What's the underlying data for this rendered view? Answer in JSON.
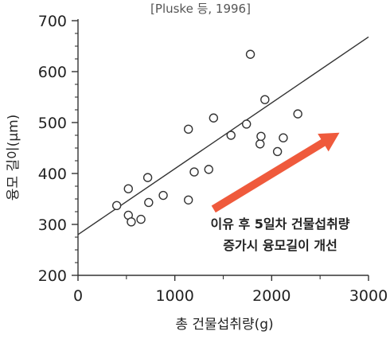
{
  "chart_data": {
    "type": "scatter",
    "source_note": "[Pluske 등, 1996]",
    "xlabel": "총 건물섭취량(g)",
    "ylabel": "융모 길이(μm)",
    "xlim": [
      0,
      3000
    ],
    "ylim": [
      200,
      700
    ],
    "x_ticks": [
      0,
      1000,
      2000,
      3000
    ],
    "y_ticks": [
      200,
      300,
      400,
      500,
      600,
      700
    ],
    "points": [
      {
        "x": 400,
        "y": 337
      },
      {
        "x": 520,
        "y": 370
      },
      {
        "x": 520,
        "y": 318
      },
      {
        "x": 550,
        "y": 305
      },
      {
        "x": 650,
        "y": 310
      },
      {
        "x": 720,
        "y": 392
      },
      {
        "x": 730,
        "y": 343
      },
      {
        "x": 880,
        "y": 357
      },
      {
        "x": 1140,
        "y": 348
      },
      {
        "x": 1140,
        "y": 487
      },
      {
        "x": 1200,
        "y": 403
      },
      {
        "x": 1350,
        "y": 408
      },
      {
        "x": 1400,
        "y": 509
      },
      {
        "x": 1580,
        "y": 475
      },
      {
        "x": 1740,
        "y": 497
      },
      {
        "x": 1780,
        "y": 634
      },
      {
        "x": 1880,
        "y": 458
      },
      {
        "x": 1890,
        "y": 473
      },
      {
        "x": 1930,
        "y": 545
      },
      {
        "x": 2060,
        "y": 443
      },
      {
        "x": 2120,
        "y": 470
      },
      {
        "x": 2270,
        "y": 517
      }
    ],
    "trendline": {
      "x": [
        0,
        3000
      ],
      "y": [
        280,
        668
      ]
    },
    "annotation": {
      "lines": [
        "이유 후 5일차 건물섭취량",
        "증가시 융모길이 개선"
      ],
      "arrow_color": "#ef5a3c",
      "arrow_from": {
        "x": 1400,
        "y": 330
      },
      "arrow_to": {
        "x": 2700,
        "y": 480
      }
    },
    "colors": {
      "axis": "#333333",
      "marker": "#333333",
      "trendline": "#333333"
    }
  }
}
